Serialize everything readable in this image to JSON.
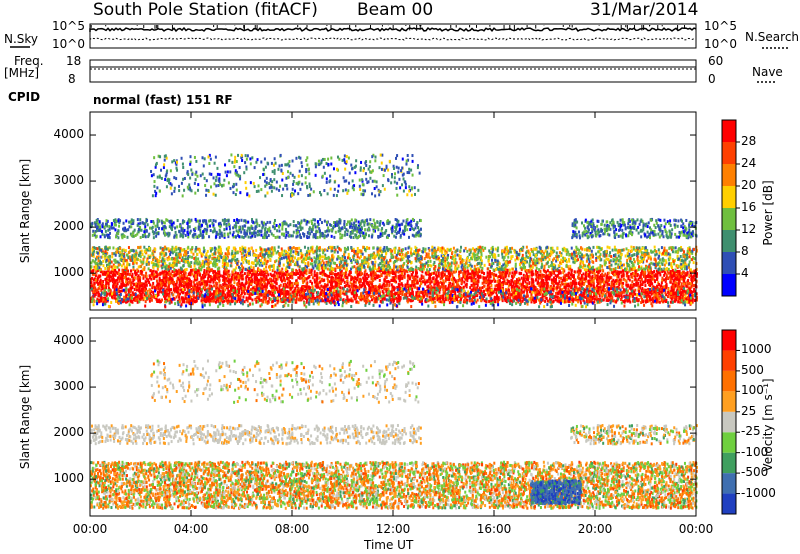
{
  "header": {
    "station": "South Pole Station (fitACF)",
    "beam": "Beam 00",
    "date": "31/Mar/2014"
  },
  "strip": {
    "nsky_label": "N.Sky",
    "nsky_ticks": [
      "10^5",
      "10^0"
    ],
    "nsearch_label": "N.Search",
    "nsearch_ticks": [
      "10^5",
      "10^0"
    ],
    "freq_label": "Freq.",
    "freq_unit": "[MHz]",
    "freq_ticks": [
      "18",
      "8"
    ],
    "nave_label": "Nave",
    "nave_ticks": [
      "60",
      "0"
    ],
    "cpid_label": "CPID",
    "cpid_value": "normal (fast) 151 RF"
  },
  "chart_data": [
    {
      "type": "heatmap",
      "ylabel": "Slant Range [km]",
      "ylim": [
        200,
        4500
      ],
      "y_ticks": [
        "4000",
        "3000",
        "2000",
        "1000"
      ],
      "x_ticks": [
        "00:00",
        "04:00",
        "08:00",
        "12:00",
        "16:00",
        "20:00",
        "00:00"
      ],
      "xlim_hours": [
        0,
        24
      ],
      "colorbar": {
        "label": "Power [dB]",
        "ticks": [
          "28",
          "24",
          "20",
          "16",
          "12",
          "8",
          "4"
        ],
        "colors": [
          "#0000ff",
          "#2f4fb5",
          "#3f8f6f",
          "#6fbf3f",
          "#ffcf00",
          "#ff8000",
          "#ff4000",
          "#ff0000"
        ]
      }
    },
    {
      "type": "heatmap",
      "ylabel": "Slant Range [km]",
      "ylim": [
        200,
        4500
      ],
      "y_ticks": [
        "4000",
        "3000",
        "2000",
        "1000"
      ],
      "x_ticks": [
        "00:00",
        "04:00",
        "08:00",
        "12:00",
        "16:00",
        "20:00",
        "00:00"
      ],
      "xlim_hours": [
        0,
        24
      ],
      "xlabel": "Time UT",
      "colorbar": {
        "label": "Velocity [m s⁻¹]",
        "ticks": [
          "1000",
          "500",
          "100",
          "25",
          "-25",
          "-100",
          "-500",
          "-1000"
        ],
        "colors": [
          "#2040c0",
          "#3f6fb0",
          "#3f9f5f",
          "#6fcf3f",
          "#c8c8c0",
          "#ff9f20",
          "#ff7000",
          "#ff4000",
          "#ff0000"
        ]
      }
    }
  ]
}
